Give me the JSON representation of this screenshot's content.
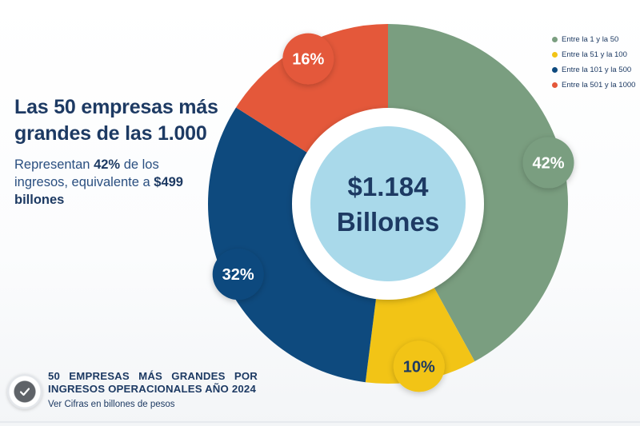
{
  "headline": "Las 50 empresas más grandes de las 1.000",
  "subtitle": {
    "part1": "Representan ",
    "pct": "42%",
    "part2": " de los ingresos, equivalente a ",
    "amount": "$499 billones"
  },
  "center": {
    "line1": "$1.184",
    "line2": "Billones"
  },
  "legend": [
    {
      "label": "Entre la 1 y la 50",
      "color": "#7a9e80"
    },
    {
      "label": "Entre la 51 y la 100",
      "color": "#f2c416"
    },
    {
      "label": "Entre la 101 y la 500",
      "color": "#0e4a7e"
    },
    {
      "label": "Entre la 501 y la 1000",
      "color": "#e4583a"
    }
  ],
  "footer": {
    "title_line1": "50 EMPRESAS MÁS GRANDES POR",
    "title_line2": "INGRESOS OPERACIONALES AÑO 2024",
    "note": "Ver Cifras en billones de pesos",
    "check_icon": "check-icon"
  },
  "chart_data": {
    "type": "pie",
    "donut": true,
    "categories": [
      "Entre la 1 y la 50",
      "Entre la 51 y la 100",
      "Entre la 101 y la 500",
      "Entre la 501 y la 1000"
    ],
    "values": [
      42,
      10,
      32,
      16
    ],
    "labels": [
      "42%",
      "10%",
      "32%",
      "16%"
    ],
    "colors": [
      "#7a9e80",
      "#f2c416",
      "#0e4a7e",
      "#e4583a"
    ],
    "unit": "%",
    "legend_position": "top-right"
  }
}
